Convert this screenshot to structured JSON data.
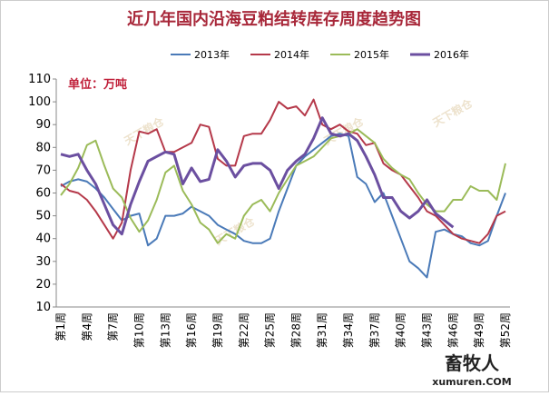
{
  "chart_data": {
    "type": "line",
    "title": "近几年国内沿海豆粕结转库存周度趋势图",
    "annotation": "单位：万吨",
    "watermarks": [
      "天下粮仓",
      "畜牧人",
      "xumuren.COM"
    ],
    "categories": [
      "第1周",
      null,
      null,
      "第4周",
      null,
      null,
      "第7周",
      null,
      null,
      "第10周",
      null,
      null,
      "第13周",
      null,
      null,
      "第16周",
      null,
      null,
      "第19周",
      null,
      null,
      "第22周",
      null,
      null,
      "第25周",
      null,
      null,
      "第28周",
      null,
      null,
      "第31周",
      null,
      null,
      "第34周",
      null,
      null,
      "第37周",
      null,
      null,
      "第40周",
      null,
      null,
      "第43周",
      null,
      null,
      "第46周",
      null,
      null,
      "第49周",
      null,
      null,
      "第52周"
    ],
    "series": [
      {
        "name": "2013年",
        "color": "#4a7ab8",
        "values": [
          63,
          65,
          66,
          65,
          62,
          58,
          53,
          48,
          50,
          51,
          37,
          40,
          50,
          50,
          51,
          54,
          52,
          50,
          46,
          44,
          42,
          39,
          38,
          38,
          40,
          52,
          62,
          72,
          76,
          79,
          82,
          85,
          86,
          85,
          67,
          64,
          56,
          60,
          50,
          40,
          30,
          27,
          23,
          43,
          44,
          42,
          41,
          38,
          37,
          39,
          50,
          60
        ]
      },
      {
        "name": "2014年",
        "color": "#b5394a",
        "values": [
          64,
          61,
          60,
          57,
          52,
          46,
          40,
          47,
          70,
          87,
          86,
          88,
          78,
          78,
          80,
          82,
          90,
          89,
          75,
          72,
          72,
          85,
          86,
          86,
          92,
          100,
          97,
          98,
          94,
          101,
          90,
          88,
          90,
          87,
          86,
          81,
          82,
          73,
          70,
          68,
          63,
          58,
          52,
          50,
          46,
          42,
          40,
          39,
          38,
          42,
          50,
          52
        ]
      },
      {
        "name": "2015年",
        "color": "#9bbb59",
        "values": [
          59,
          64,
          71,
          81,
          83,
          72,
          62,
          58,
          49,
          43,
          48,
          57,
          69,
          72,
          61,
          55,
          47,
          44,
          38,
          42,
          40,
          50,
          55,
          57,
          52,
          60,
          66,
          72,
          74,
          76,
          80,
          84,
          85,
          86,
          88,
          85,
          82,
          75,
          71,
          68,
          66,
          60,
          55,
          52,
          52,
          57,
          57,
          63,
          61,
          61,
          57,
          73
        ]
      },
      {
        "name": "2016年",
        "color": "#6b4fa0",
        "values": [
          77,
          76,
          77,
          70,
          64,
          55,
          46,
          42,
          55,
          65,
          74,
          76,
          78,
          77,
          64,
          71,
          65,
          66,
          79,
          74,
          67,
          72,
          73,
          73,
          70,
          62,
          70,
          74,
          77,
          84,
          93,
          86,
          85,
          86,
          83,
          76,
          68,
          58,
          58,
          52,
          49,
          52,
          57,
          51,
          48,
          45,
          null,
          null,
          null,
          null,
          null,
          null
        ]
      }
    ],
    "ylim": [
      10,
      110
    ],
    "yticks": [
      10,
      20,
      30,
      40,
      50,
      60,
      70,
      80,
      90,
      100,
      110
    ],
    "grid": false
  }
}
